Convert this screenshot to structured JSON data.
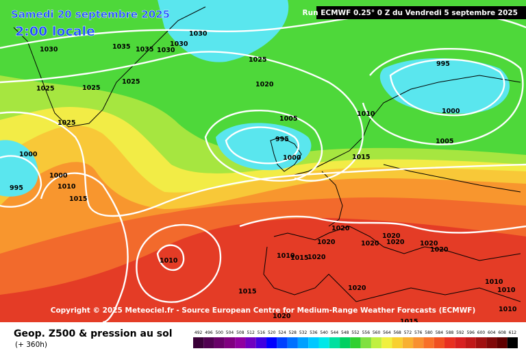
{
  "header": {
    "date": "Samedi 20 septembre 2025",
    "time": "2:00 locale",
    "run": "Run ECMWF 0.25° 0 Z du Vendredi 5 septembre 2025"
  },
  "copyright": "Copyright © 2025 Meteociel.fr - Source European Centre for Medium-Range Weather Forecasts (ECMWF)",
  "isobar_labels": [
    "1030",
    "1035",
    "1035",
    "1030",
    "1030",
    "1030",
    "1025",
    "1020",
    "1025",
    "1025",
    "1025",
    "1025",
    "995",
    "1010",
    "1000",
    "1005",
    "995",
    "1000",
    "1005",
    "1015",
    "1000",
    "1000",
    "1010",
    "995",
    "1015",
    "1020",
    "1020",
    "1020",
    "1020",
    "1020",
    "1020",
    "1020",
    "1010",
    "1010",
    "1015",
    "1020",
    "1015",
    "1020",
    "1010",
    "1010",
    "1010",
    "1020",
    "1015"
  ],
  "footer": {
    "title": "Geop. Z500 & pression au sol",
    "subtitle": "(+ 360h)"
  },
  "legend": {
    "labels": [
      492,
      496,
      500,
      504,
      508,
      512,
      516,
      520,
      524,
      528,
      532,
      536,
      540,
      544,
      548,
      552,
      556,
      560,
      564,
      568,
      572,
      576,
      580,
      584,
      588,
      592,
      596,
      600,
      604,
      608,
      612
    ]
  }
}
